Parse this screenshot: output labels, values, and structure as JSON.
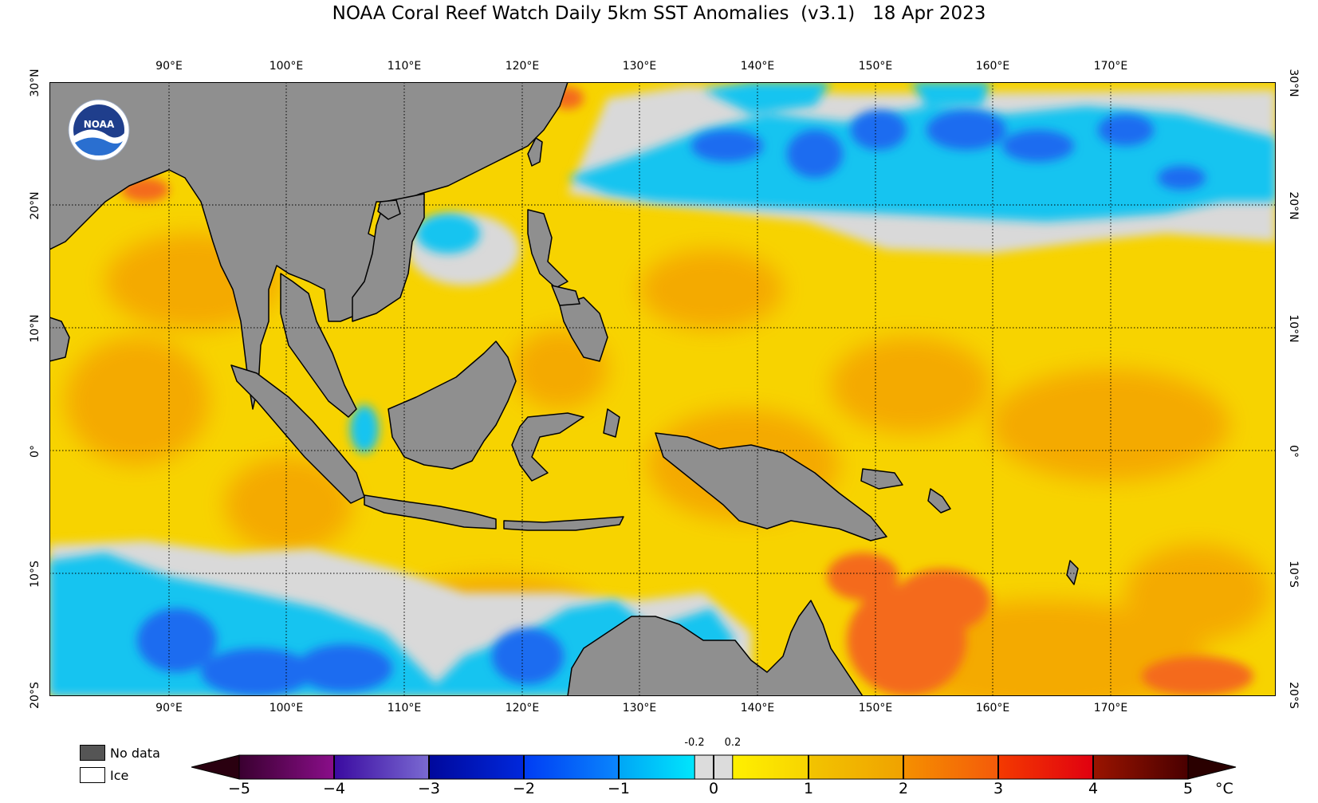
{
  "title": "NOAA Coral Reef Watch Daily 5km SST Anomalies  (v3.1)   18 Apr 2023",
  "map": {
    "lon_range": [
      80,
      180
    ],
    "lat_range": [
      -20,
      30
    ],
    "lon_labels": [
      "90°E",
      "100°E",
      "110°E",
      "120°E",
      "130°E",
      "140°E",
      "150°E",
      "160°E",
      "170°E"
    ],
    "lat_labels": [
      "30°N",
      "20°N",
      "10°N",
      "0°",
      "10°S",
      "20°S"
    ],
    "gridlines": "dotted",
    "logo": {
      "text": "NOAA",
      "icon": "noaa-logo-icon"
    },
    "colors": {
      "land": "#8f8f8f",
      "ocean_base": "#f7d300",
      "warm": "#f4a300",
      "hot": "#f46a1a",
      "cool": "#16c4f0",
      "cold": "#1b6cf0",
      "neutral": "#d9d9d9"
    }
  },
  "legend": {
    "no_data_label": "No data",
    "no_data_color": "#555555",
    "ice_label": "Ice",
    "ice_color": "#ffffff"
  },
  "colorbar": {
    "unit": "°C",
    "ticks": [
      "−5",
      "−4",
      "−3",
      "−2",
      "−1",
      "0",
      "1",
      "2",
      "3",
      "4",
      "5"
    ],
    "small_ticks": [
      "-0.2",
      "0.2"
    ],
    "range": [
      -5,
      5
    ],
    "under_color": "#2a0010",
    "over_color": "#2a0000",
    "segments": [
      {
        "from": -5,
        "to": -4,
        "c1": "#3a0030",
        "c2": "#8a0e8a"
      },
      {
        "from": -4,
        "to": -3,
        "c1": "#3a0aa0",
        "c2": "#7a6ad2"
      },
      {
        "from": -3,
        "to": -2,
        "c1": "#00089c",
        "c2": "#0028dc"
      },
      {
        "from": -2,
        "to": -1,
        "c1": "#003cf4",
        "c2": "#0a86fc"
      },
      {
        "from": -1,
        "to": -0.2,
        "c1": "#00a6f6",
        "c2": "#00e6fc"
      },
      {
        "from": -0.2,
        "to": 0.2,
        "c1": "#dcdcdc",
        "c2": "#dcdcdc"
      },
      {
        "from": 0.2,
        "to": 1,
        "c1": "#fff000",
        "c2": "#f7d400"
      },
      {
        "from": 1,
        "to": 2,
        "c1": "#f2c400",
        "c2": "#f0a200"
      },
      {
        "from": 2,
        "to": 3,
        "c1": "#f59000",
        "c2": "#f45a0a"
      },
      {
        "from": 3,
        "to": 4,
        "c1": "#f43a00",
        "c2": "#e00010"
      },
      {
        "from": 4,
        "to": 5,
        "c1": "#9a1400",
        "c2": "#4a0000"
      }
    ]
  }
}
